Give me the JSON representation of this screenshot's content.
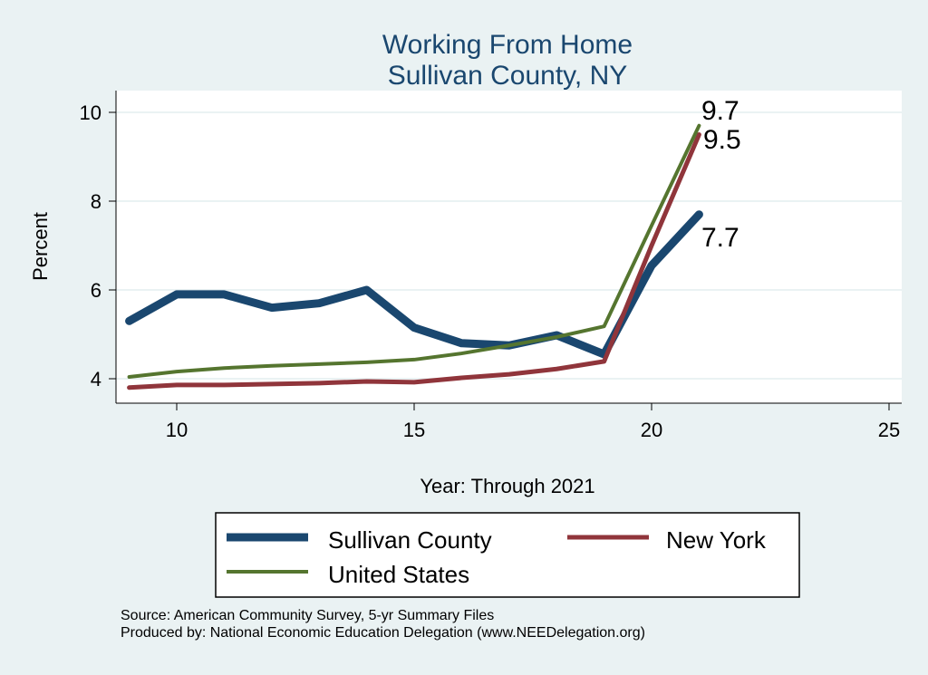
{
  "chart_data": {
    "type": "line",
    "title": "Working From Home",
    "subtitle": "Sullivan County, NY",
    "xlabel": "Year: Through 2021",
    "ylabel": "Percent",
    "xlim": [
      8.7,
      25.3
    ],
    "ylim": [
      3.4,
      10.5
    ],
    "xticks": [
      10,
      15,
      20,
      25
    ],
    "yticks": [
      4,
      6,
      8,
      10
    ],
    "grid": true,
    "legend_position": "bottom",
    "x": [
      9,
      10,
      11,
      12,
      13,
      14,
      15,
      16,
      17,
      18,
      19,
      20,
      21
    ],
    "series": [
      {
        "name": "Sullivan County",
        "color": "#1a476f",
        "values": [
          5.3,
          5.9,
          5.9,
          5.6,
          5.7,
          6.0,
          5.15,
          4.8,
          4.75,
          4.98,
          4.55,
          6.55,
          7.7
        ],
        "end_label": "7.7"
      },
      {
        "name": "New York",
        "color": "#90353b",
        "values": [
          3.8,
          3.86,
          3.86,
          3.88,
          3.9,
          3.94,
          3.92,
          4.02,
          4.1,
          4.22,
          4.39,
          7.0,
          9.5
        ],
        "end_label": "9.5"
      },
      {
        "name": "United States",
        "color": "#55752f",
        "values": [
          4.04,
          4.16,
          4.24,
          4.29,
          4.33,
          4.37,
          4.43,
          4.57,
          4.75,
          4.94,
          5.18,
          7.45,
          9.7
        ],
        "end_label": "9.7"
      }
    ]
  },
  "notes": {
    "source": "Source: American Community Survey, 5-yr Summary Files",
    "produced": "Produced by: National Economic Education Delegation (www.NEEDelegation.org)"
  }
}
